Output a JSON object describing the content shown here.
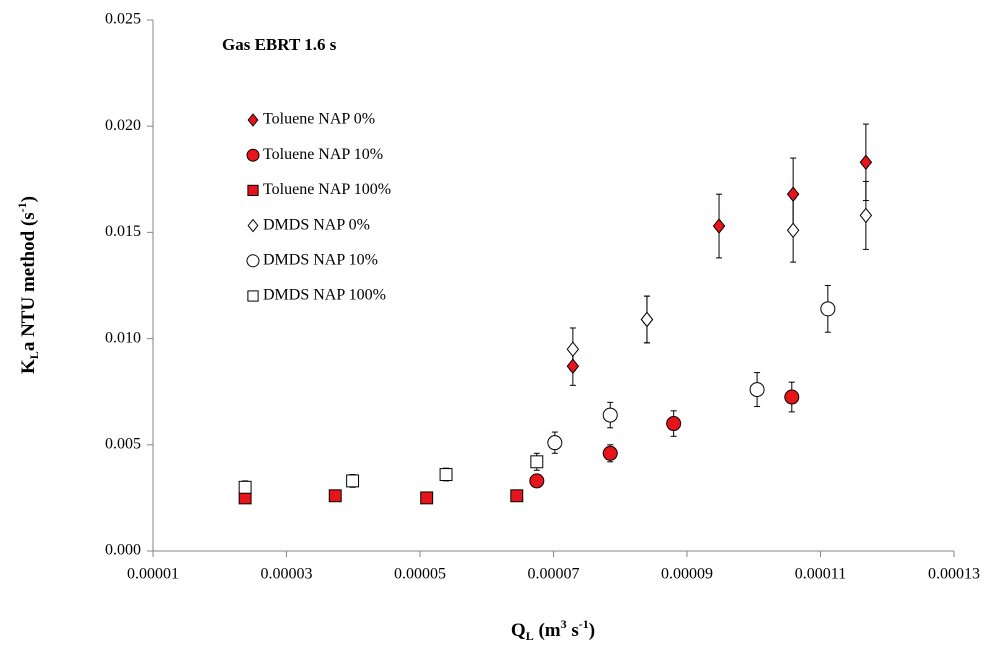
{
  "chart_data": {
    "type": "scatter",
    "annotation": "Gas EBRT 1.6 s",
    "xlabel": [
      "Q",
      "L",
      " (m",
      "3",
      " s",
      "-1",
      ")"
    ],
    "ylabel": [
      "K",
      "L",
      "a NTU method (s",
      "-1",
      ")"
    ],
    "xlim": [
      1e-05,
      0.00013
    ],
    "xticks": [
      {
        "value": 1e-05,
        "label": "0.00001"
      },
      {
        "value": 3e-05,
        "label": "0.00003"
      },
      {
        "value": 5e-05,
        "label": "0.00005"
      },
      {
        "value": 7e-05,
        "label": "0.00007"
      },
      {
        "value": 9e-05,
        "label": "0.00009"
      },
      {
        "value": 0.00011,
        "label": "0.00011"
      },
      {
        "value": 0.00013,
        "label": "0.00013"
      }
    ],
    "ylim": [
      0,
      0.025
    ],
    "yticks": [
      {
        "value": 0,
        "label": "0.000"
      },
      {
        "value": 0.005,
        "label": "0.005"
      },
      {
        "value": 0.01,
        "label": "0.010"
      },
      {
        "value": 0.015,
        "label": "0.015"
      },
      {
        "value": 0.02,
        "label": "0.020"
      },
      {
        "value": 0.025,
        "label": "0.025"
      }
    ],
    "series": [
      {
        "name": "Toluene NAP 0%",
        "marker": "diamond",
        "color": "#e8141b",
        "x": [
          7.29e-05,
          8.4e-05,
          9.48e-05,
          0.0001059,
          0.0001168
        ],
        "values": [
          0.0087,
          0.0109,
          0.0153,
          0.0168,
          0.0183
        ],
        "errors": [
          0.0009,
          0.0011,
          0.0015,
          0.0017,
          0.0018
        ]
      },
      {
        "name": "Toluene NAP 10%",
        "marker": "circle",
        "color": "#e8141b",
        "x": [
          6.75e-05,
          7.85e-05,
          8.8e-05,
          0.0001057
        ],
        "values": [
          0.0033,
          0.0046,
          0.006,
          0.00725
        ],
        "errors": [
          0.0002,
          0.0004,
          0.0006,
          0.0007
        ]
      },
      {
        "name": "Toluene NAP 100%",
        "marker": "square",
        "color": "#e8141b",
        "x": [
          2.38e-05,
          3.73e-05,
          5.1e-05,
          6.45e-05
        ],
        "values": [
          0.0025,
          0.0026,
          0.0025,
          0.0026
        ]
      },
      {
        "name": "DMDS NAP 0%",
        "marker": "diamond",
        "color": "#ffffff",
        "x": [
          7.29e-05,
          8.4e-05,
          0.0001059,
          0.0001168
        ],
        "values": [
          0.0095,
          0.0109,
          0.0151,
          0.0158
        ],
        "errors": [
          0.001,
          0.0011,
          0.0015,
          0.0016
        ]
      },
      {
        "name": "DMDS NAP 10%",
        "marker": "circle",
        "color": "#ffffff",
        "x": [
          7.02e-05,
          7.85e-05,
          0.0001005,
          0.0001111
        ],
        "values": [
          0.0051,
          0.0064,
          0.0076,
          0.0114
        ],
        "errors": [
          0.0005,
          0.0006,
          0.0008,
          0.0011
        ]
      },
      {
        "name": "DMDS NAP 100%",
        "marker": "square",
        "color": "#ffffff",
        "x": [
          2.38e-05,
          3.99e-05,
          5.39e-05,
          6.75e-05
        ],
        "values": [
          0.003,
          0.0033,
          0.0036,
          0.0042
        ],
        "errors": [
          0.0003,
          0.0003,
          0.0003,
          0.0004
        ]
      }
    ]
  }
}
